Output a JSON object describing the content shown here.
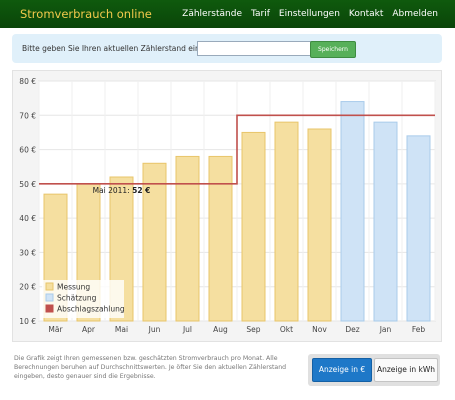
{
  "header": {
    "brand": "Stromverbrauch online",
    "nav": [
      "Zählerstände",
      "Tarif",
      "Einstellungen",
      "Kontakt",
      "Abmelden"
    ],
    "brand_color": "#f2c94c",
    "bar_color": "#0f5a0d"
  },
  "meter_form": {
    "label": "Bitte geben Sie Ihren aktuellen Zählerstand ein:",
    "input_value": "",
    "button": "Speichern"
  },
  "chart_data": {
    "type": "bar",
    "categories": [
      "Mär",
      "Apr",
      "Mai",
      "Jun",
      "Jul",
      "Aug",
      "Sep",
      "Okt",
      "Nov",
      "Dez",
      "Jan",
      "Feb"
    ],
    "ylim": [
      10,
      80
    ],
    "yticks": [
      "10 €",
      "20 €",
      "30 €",
      "40 €",
      "50 €",
      "60 €",
      "70 €",
      "80 €"
    ],
    "grid": true,
    "series": [
      {
        "name": "Messung",
        "color": "#f5dfa0",
        "stroke": "#e8c56a",
        "values": [
          47,
          50,
          52,
          56,
          58,
          58,
          65,
          68,
          66,
          12,
          null,
          null
        ]
      },
      {
        "name": "Schätzung",
        "color": "#cfe3f6",
        "stroke": "#a9cbea",
        "values": [
          null,
          null,
          null,
          null,
          null,
          null,
          null,
          null,
          null,
          74,
          68,
          64
        ]
      },
      {
        "name": "Abschlagszahlung",
        "color": "#c0504d",
        "type": "step",
        "values": [
          50,
          50,
          50,
          50,
          50,
          50,
          70,
          70,
          70,
          70,
          70,
          70
        ]
      }
    ],
    "legend_position": "bottom-left",
    "tooltip": {
      "label": "Mai 2011:",
      "value": "52 €",
      "category": "Mai"
    }
  },
  "description": "Die Grafik zeigt Ihren gemessenen bzw. geschätzten Stromverbrauch pro Monat. Alle Berechnungen beruhen auf Durchschnittswerten. Je öfter Sie den aktuellen Zählerstand eingeben, desto genauer sind die Ergebnisse.",
  "view_toggle": {
    "euro": "Anzeige in €",
    "kwh": "Anzeige in kWh",
    "active": "euro"
  }
}
